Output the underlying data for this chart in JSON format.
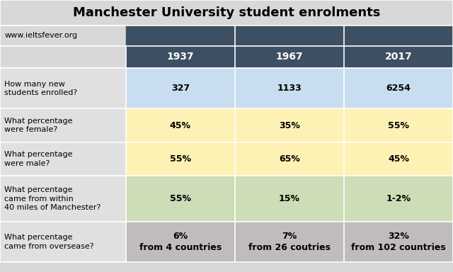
{
  "title": "Manchester University student enrolments",
  "watermark": "www.ieltsfever.org",
  "columns": [
    "1937",
    "1967",
    "2017"
  ],
  "rows": [
    {
      "question": "How many new\nstudents enrolled?",
      "values": [
        "327",
        "1133",
        "6254"
      ],
      "row_bg": "#c9ddf0"
    },
    {
      "question": "What percentage\nwere female?",
      "values": [
        "45%",
        "35%",
        "55%"
      ],
      "row_bg": "#fdf2b3"
    },
    {
      "question": "What percentage\nwere male?",
      "values": [
        "55%",
        "65%",
        "45%"
      ],
      "row_bg": "#fdf2b3"
    },
    {
      "question": "What percentage\ncame from within\n40 miles of Manchester?",
      "values": [
        "55%",
        "15%",
        "1-2%"
      ],
      "row_bg": "#ccddb8"
    },
    {
      "question": "What percentage\ncame from oversease?",
      "values": [
        "6%\nfrom 4 countries",
        "7%\nfrom 26 coutries",
        "32%\nfrom 102 countries"
      ],
      "row_bg": "#c0bcbc"
    }
  ],
  "header_bg": "#3d4f63",
  "header_fg": "#ffffff",
  "question_col_bg": "#e0e0e0",
  "title_bg": "#d8d8d8",
  "watermark_row_bg": "#d8d8d8",
  "title_fontsize": 13,
  "watermark_fontsize": 8,
  "header_fontsize": 10,
  "cell_fontsize": 9,
  "question_fontsize": 8,
  "fig_width": 6.4,
  "fig_height": 3.84,
  "dpi": 100
}
